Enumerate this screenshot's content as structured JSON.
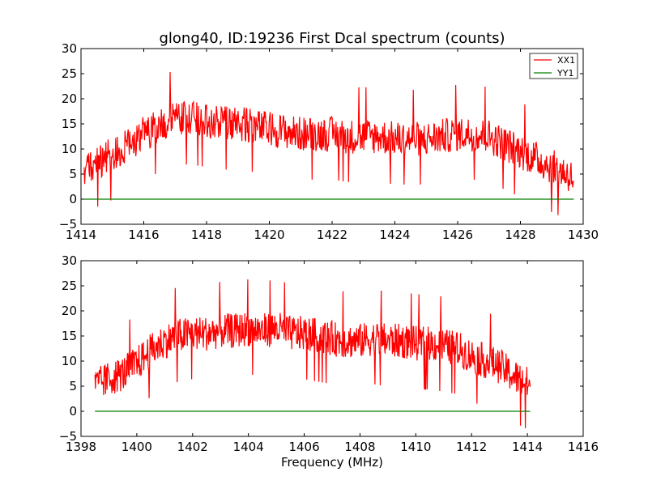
{
  "chart_data": [
    {
      "type": "line",
      "title": "glong40, ID:19236 First Dcal spectrum (counts)",
      "xlabel": "",
      "ylabel": "",
      "xlim": [
        1414,
        1430
      ],
      "ylim": [
        -5,
        30
      ],
      "xticks": [
        "1414",
        "1416",
        "1418",
        "1420",
        "1422",
        "1424",
        "1426",
        "1428",
        "1430"
      ],
      "yticks": [
        "−5",
        "0",
        "5",
        "10",
        "15",
        "20",
        "25",
        "30"
      ],
      "grid": false,
      "legend": "top-right",
      "series": [
        {
          "name": "XX1",
          "color": "#ff0000",
          "x": [
            1414.1,
            1414.5,
            1415.0,
            1415.5,
            1416.0,
            1416.5,
            1417.0,
            1417.5,
            1418.0,
            1418.5,
            1419.0,
            1419.5,
            1420.0,
            1420.5,
            1421.0,
            1421.5,
            1422.0,
            1422.5,
            1423.0,
            1423.5,
            1424.0,
            1424.5,
            1425.0,
            1425.5,
            1426.0,
            1426.5,
            1427.0,
            1427.5,
            1428.0,
            1428.5,
            1429.0,
            1429.5,
            1429.7
          ],
          "y": [
            5.0,
            7.5,
            9.0,
            11.0,
            13.0,
            14.5,
            16.0,
            16.0,
            15.5,
            15.0,
            15.0,
            14.5,
            14.0,
            13.5,
            13.0,
            13.0,
            13.0,
            12.5,
            12.5,
            12.5,
            12.0,
            12.0,
            12.0,
            12.5,
            13.0,
            13.0,
            12.5,
            11.0,
            9.5,
            8.0,
            6.5,
            5.0,
            4.0
          ],
          "noise": 3.5
        },
        {
          "name": "YY1",
          "color": "#008000",
          "x": [
            1414.1,
            1429.7
          ],
          "y": [
            0,
            0
          ]
        }
      ]
    },
    {
      "type": "line",
      "title": "",
      "xlabel": "Frequency (MHz)",
      "ylabel": "",
      "xlim": [
        1398,
        1416
      ],
      "ylim": [
        -5,
        30
      ],
      "xticks": [
        "1398",
        "1400",
        "1402",
        "1404",
        "1406",
        "1408",
        "1410",
        "1412",
        "1414",
        "1416"
      ],
      "yticks": [
        "−5",
        "0",
        "5",
        "10",
        "15",
        "20",
        "25",
        "30"
      ],
      "grid": false,
      "legend": "none",
      "series": [
        {
          "name": "",
          "color": "#ff0000",
          "x": [
            1398.5,
            1399.0,
            1399.5,
            1400.0,
            1400.5,
            1401.0,
            1401.5,
            1402.0,
            1402.5,
            1403.0,
            1403.5,
            1404.0,
            1404.5,
            1405.0,
            1405.5,
            1406.0,
            1406.5,
            1407.0,
            1407.5,
            1408.0,
            1408.5,
            1409.0,
            1409.5,
            1410.0,
            1410.5,
            1411.0,
            1411.5,
            1412.0,
            1412.5,
            1413.0,
            1413.5,
            1414.0,
            1414.1
          ],
          "y": [
            5.0,
            6.5,
            7.5,
            9.5,
            12.0,
            14.0,
            15.0,
            15.5,
            15.5,
            16.0,
            16.0,
            16.5,
            16.0,
            16.5,
            15.5,
            15.5,
            15.0,
            14.5,
            14.0,
            14.0,
            14.5,
            14.0,
            14.0,
            13.5,
            13.5,
            13.0,
            12.5,
            11.0,
            10.0,
            9.0,
            7.0,
            5.5,
            5.0
          ],
          "noise": 3.5
        },
        {
          "name": "",
          "color": "#008000",
          "x": [
            1398.5,
            1414.1
          ],
          "y": [
            0,
            0
          ]
        }
      ]
    }
  ]
}
